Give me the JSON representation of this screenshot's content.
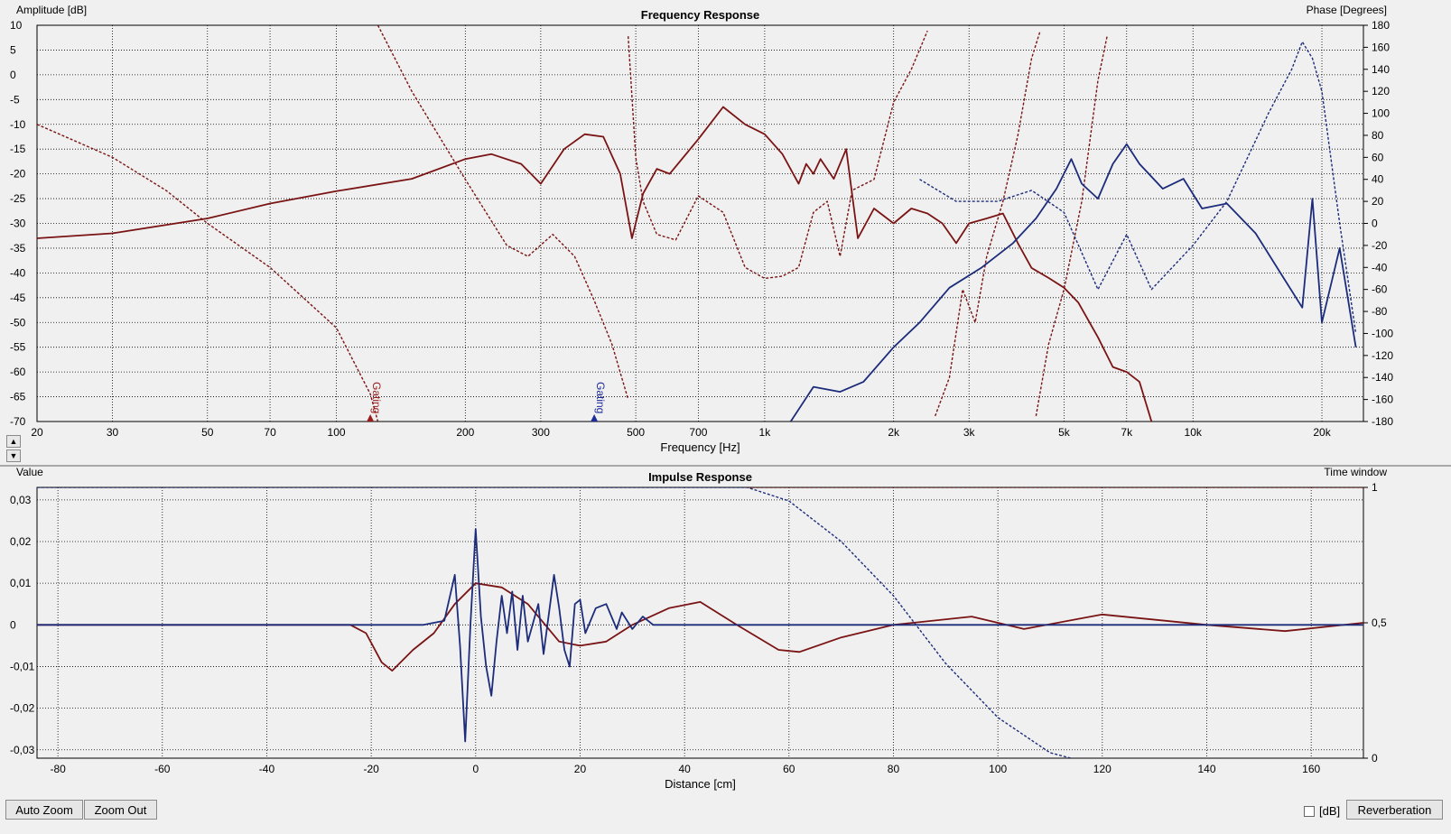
{
  "chart_data": [
    {
      "type": "line",
      "title": "Frequency Response",
      "xlabel": "Frequency [Hz]",
      "ylabel": "Amplitude [dB]",
      "y2label": "Phase [Degrees]",
      "xscale": "log",
      "xlim": [
        20,
        25000
      ],
      "ylim": [
        -70,
        10
      ],
      "y2lim": [
        -180,
        180
      ],
      "grid": true,
      "x_ticks": [
        20,
        30,
        50,
        70,
        100,
        200,
        300,
        500,
        700,
        1000,
        2000,
        3000,
        5000,
        7000,
        10000,
        20000
      ],
      "x_tick_labels": [
        "20",
        "30",
        "50",
        "70",
        "100",
        "200",
        "300",
        "500",
        "700",
        "1k",
        "2k",
        "3k",
        "5k",
        "7k",
        "10k",
        "20k"
      ],
      "y_ticks": [
        10,
        5,
        0,
        -5,
        -10,
        -15,
        -20,
        -25,
        -30,
        -35,
        -40,
        -45,
        -50,
        -55,
        -60,
        -65,
        -70
      ],
      "y2_ticks": [
        180,
        160,
        140,
        120,
        100,
        80,
        60,
        40,
        20,
        0,
        -20,
        -40,
        -60,
        -80,
        -100,
        -120,
        -140,
        -160,
        -180
      ],
      "markers": [
        {
          "label": "Gating",
          "x": 120,
          "color": "#9b1c1c"
        },
        {
          "label": "Gating",
          "x": 400,
          "color": "#1c2c9b"
        }
      ],
      "series": [
        {
          "color": "#7a1414",
          "style": "solid",
          "axis": "left",
          "points": [
            [
              20,
              -33
            ],
            [
              30,
              -32
            ],
            [
              50,
              -29
            ],
            [
              70,
              -26
            ],
            [
              100,
              -23.5
            ],
            [
              150,
              -21
            ],
            [
              200,
              -17
            ],
            [
              230,
              -16
            ],
            [
              270,
              -18
            ],
            [
              300,
              -22
            ],
            [
              340,
              -15
            ],
            [
              380,
              -12
            ],
            [
              420,
              -12.5
            ],
            [
              460,
              -20
            ],
            [
              490,
              -33
            ],
            [
              520,
              -24
            ],
            [
              560,
              -19
            ],
            [
              600,
              -20
            ],
            [
              700,
              -13
            ],
            [
              800,
              -6.5
            ],
            [
              900,
              -10
            ],
            [
              1000,
              -12
            ],
            [
              1100,
              -16
            ],
            [
              1200,
              -22
            ],
            [
              1250,
              -18
            ],
            [
              1300,
              -20
            ],
            [
              1350,
              -17
            ],
            [
              1450,
              -21
            ],
            [
              1550,
              -15
            ],
            [
              1650,
              -33
            ],
            [
              1800,
              -27
            ],
            [
              2000,
              -30
            ],
            [
              2200,
              -27
            ],
            [
              2400,
              -28
            ],
            [
              2600,
              -30
            ],
            [
              2800,
              -34
            ],
            [
              3000,
              -30
            ],
            [
              3300,
              -29
            ],
            [
              3600,
              -28
            ],
            [
              3900,
              -34
            ],
            [
              4200,
              -39
            ],
            [
              4600,
              -41
            ],
            [
              5000,
              -43
            ],
            [
              5400,
              -46
            ],
            [
              6000,
              -53
            ],
            [
              6500,
              -59
            ],
            [
              7000,
              -60
            ],
            [
              7500,
              -62
            ],
            [
              8000,
              -70
            ]
          ]
        },
        {
          "color": "#7a1414",
          "style": "dashed",
          "axis": "right",
          "points": [
            [
              20,
              90
            ],
            [
              30,
              60
            ],
            [
              40,
              30
            ],
            [
              50,
              0
            ],
            [
              70,
              -40
            ],
            [
              100,
              -95
            ],
            [
              120,
              -155
            ],
            [
              125,
              -180
            ]
          ]
        },
        {
          "color": "#7a1414",
          "style": "dashed",
          "axis": "right",
          "points": [
            [
              125,
              180
            ],
            [
              150,
              120
            ],
            [
              200,
              40
            ],
            [
              250,
              -20
            ],
            [
              280,
              -30
            ],
            [
              320,
              -10
            ],
            [
              360,
              -30
            ],
            [
              400,
              -70
            ],
            [
              440,
              -110
            ],
            [
              480,
              -160
            ]
          ]
        },
        {
          "color": "#7a1414",
          "style": "dashed",
          "axis": "right",
          "points": [
            [
              480,
              170
            ],
            [
              500,
              60
            ],
            [
              520,
              20
            ],
            [
              560,
              -10
            ],
            [
              620,
              -15
            ],
            [
              700,
              25
            ],
            [
              800,
              10
            ],
            [
              900,
              -40
            ],
            [
              1000,
              -50
            ],
            [
              1100,
              -48
            ],
            [
              1200,
              -40
            ],
            [
              1300,
              10
            ],
            [
              1400,
              20
            ],
            [
              1500,
              -30
            ],
            [
              1600,
              30
            ],
            [
              1800,
              40
            ],
            [
              2000,
              110
            ],
            [
              2200,
              140
            ],
            [
              2400,
              175
            ]
          ]
        },
        {
          "color": "#7a1414",
          "style": "dashed",
          "axis": "right",
          "points": [
            [
              2500,
              -175
            ],
            [
              2700,
              -140
            ],
            [
              2900,
              -60
            ],
            [
              3100,
              -90
            ],
            [
              3300,
              -30
            ],
            [
              3600,
              20
            ],
            [
              3900,
              80
            ],
            [
              4200,
              150
            ],
            [
              4400,
              175
            ]
          ]
        },
        {
          "color": "#7a1414",
          "style": "dashed",
          "axis": "right",
          "points": [
            [
              4300,
              -175
            ],
            [
              4600,
              -110
            ],
            [
              5000,
              -60
            ],
            [
              5500,
              20
            ],
            [
              6000,
              130
            ],
            [
              6300,
              170
            ]
          ]
        },
        {
          "color": "#1c2c7a",
          "style": "solid",
          "axis": "left",
          "points": [
            [
              1150,
              -70
            ],
            [
              1300,
              -63
            ],
            [
              1500,
              -64
            ],
            [
              1700,
              -62
            ],
            [
              2000,
              -55
            ],
            [
              2300,
              -50
            ],
            [
              2700,
              -43
            ],
            [
              3200,
              -39
            ],
            [
              3800,
              -34
            ],
            [
              4300,
              -29
            ],
            [
              4800,
              -23
            ],
            [
              5200,
              -17
            ],
            [
              5500,
              -22
            ],
            [
              6000,
              -25
            ],
            [
              6500,
              -18
            ],
            [
              7000,
              -14
            ],
            [
              7500,
              -18
            ],
            [
              8500,
              -23
            ],
            [
              9500,
              -21
            ],
            [
              10500,
              -27
            ],
            [
              12000,
              -26
            ],
            [
              14000,
              -32
            ],
            [
              16000,
              -40
            ],
            [
              18000,
              -47
            ],
            [
              19000,
              -25
            ],
            [
              20000,
              -50
            ],
            [
              22000,
              -35
            ],
            [
              24000,
              -55
            ]
          ]
        },
        {
          "color": "#1c2c7a",
          "style": "dashed",
          "axis": "right",
          "points": [
            [
              2300,
              40
            ],
            [
              2800,
              20
            ],
            [
              3500,
              20
            ],
            [
              4200,
              30
            ],
            [
              5000,
              10
            ],
            [
              6000,
              -60
            ],
            [
              7000,
              -10
            ],
            [
              8000,
              -60
            ],
            [
              10000,
              -20
            ],
            [
              12000,
              20
            ],
            [
              15000,
              100
            ],
            [
              17000,
              140
            ],
            [
              18000,
              165
            ],
            [
              19000,
              150
            ],
            [
              20000,
              120
            ],
            [
              22000,
              0
            ],
            [
              24000,
              -100
            ]
          ]
        }
      ]
    },
    {
      "type": "line",
      "title": "Impulse Response",
      "xlabel": "Distance [cm]",
      "ylabel": "Value",
      "y2label": "Time window",
      "xlim": [
        -84,
        170
      ],
      "ylim": [
        -0.032,
        0.033
      ],
      "y2lim": [
        0,
        1
      ],
      "grid": true,
      "x_ticks": [
        -80,
        -60,
        -40,
        -20,
        0,
        20,
        40,
        60,
        80,
        100,
        120,
        140,
        160
      ],
      "y_ticks": [
        0.03,
        0.02,
        0.01,
        0,
        -0.01,
        -0.02,
        -0.03
      ],
      "y_tick_labels": [
        "0,03",
        "0,02",
        "0,01",
        "0",
        "-0,01",
        "-0,02",
        "-0,03"
      ],
      "y2_ticks": [
        1,
        0.5,
        0
      ],
      "y2_tick_labels": [
        "1",
        "0,5",
        "0"
      ],
      "series": [
        {
          "color": "#7a1414",
          "style": "solid",
          "axis": "left",
          "points": [
            [
              -84,
              0
            ],
            [
              -24,
              0
            ],
            [
              -21,
              -0.002
            ],
            [
              -18,
              -0.009
            ],
            [
              -16,
              -0.011
            ],
            [
              -12,
              -0.006
            ],
            [
              -8,
              -0.002
            ],
            [
              -4,
              0.005
            ],
            [
              0,
              0.01
            ],
            [
              5,
              0.009
            ],
            [
              10,
              0.005
            ],
            [
              16,
              -0.004
            ],
            [
              20,
              -0.005
            ],
            [
              25,
              -0.004
            ],
            [
              30,
              0
            ],
            [
              37,
              0.004
            ],
            [
              43,
              0.0055
            ],
            [
              50,
              0
            ],
            [
              58,
              -0.006
            ],
            [
              62,
              -0.0065
            ],
            [
              70,
              -0.003
            ],
            [
              80,
              0
            ],
            [
              95,
              0.002
            ],
            [
              105,
              -0.001
            ],
            [
              120,
              0.0025
            ],
            [
              140,
              0
            ],
            [
              155,
              -0.0015
            ],
            [
              170,
              0.0005
            ]
          ]
        },
        {
          "color": "#1c2c7a",
          "style": "solid",
          "axis": "left",
          "points": [
            [
              -84,
              0
            ],
            [
              -10,
              0
            ],
            [
              -6,
              0.001
            ],
            [
              -4,
              0.012
            ],
            [
              -3,
              -0.005
            ],
            [
              -2,
              -0.028
            ],
            [
              -1,
              0
            ],
            [
              0,
              0.023
            ],
            [
              1,
              0.002
            ],
            [
              2,
              -0.01
            ],
            [
              3,
              -0.017
            ],
            [
              4,
              -0.004
            ],
            [
              5,
              0.007
            ],
            [
              6,
              -0.002
            ],
            [
              7,
              0.008
            ],
            [
              8,
              -0.006
            ],
            [
              9,
              0.007
            ],
            [
              10,
              -0.004
            ],
            [
              12,
              0.005
            ],
            [
              13,
              -0.007
            ],
            [
              15,
              0.012
            ],
            [
              16,
              0.004
            ],
            [
              17,
              -0.006
            ],
            [
              18,
              -0.01
            ],
            [
              19,
              0.005
            ],
            [
              20,
              0.006
            ],
            [
              21,
              -0.002
            ],
            [
              23,
              0.004
            ],
            [
              25,
              0.005
            ],
            [
              27,
              -0.001
            ],
            [
              28,
              0.003
            ],
            [
              30,
              -0.001
            ],
            [
              32,
              0.002
            ],
            [
              34,
              0
            ],
            [
              50,
              0
            ],
            [
              170,
              0
            ]
          ]
        },
        {
          "color": "#1c2c7a",
          "style": "dashed",
          "axis": "right",
          "points": [
            [
              -84,
              1
            ],
            [
              0,
              1
            ],
            [
              52,
              1
            ],
            [
              60,
              0.95
            ],
            [
              70,
              0.8
            ],
            [
              80,
              0.6
            ],
            [
              90,
              0.35
            ],
            [
              100,
              0.15
            ],
            [
              110,
              0.02
            ],
            [
              114,
              0
            ]
          ]
        },
        {
          "color": "#7a1414",
          "style": "dashed",
          "axis": "right",
          "points": [
            [
              52,
              1
            ],
            [
              170,
              1
            ]
          ]
        }
      ]
    }
  ],
  "controls": {
    "auto_zoom": "Auto Zoom",
    "zoom_out": "Zoom Out",
    "db_label": "[dB]",
    "reverberation": "Reverberation",
    "scroll_up": "▲",
    "scroll_down": "▼"
  }
}
